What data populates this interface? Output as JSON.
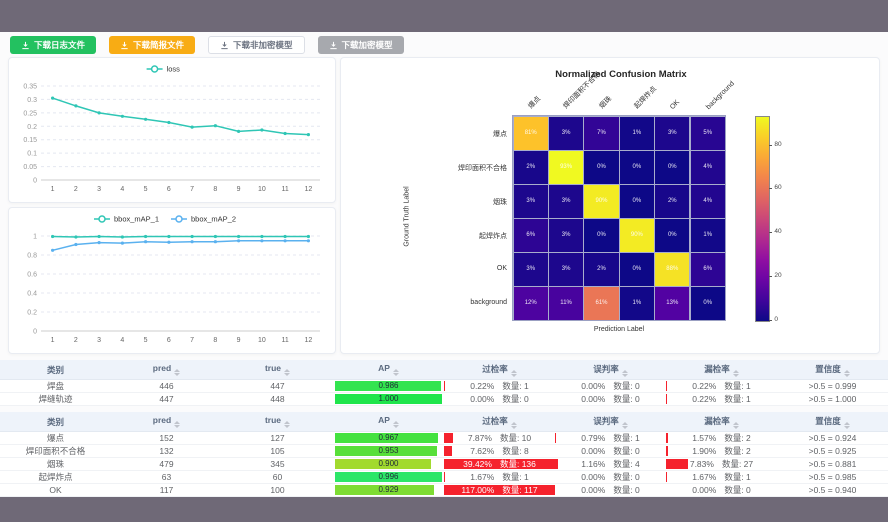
{
  "chrome": {
    "bar_color": "#6f6977"
  },
  "toolbar": {
    "buttons": [
      {
        "label": "下载日志文件",
        "variant": "success",
        "bg": "#23c160",
        "fg": "#ffffff"
      },
      {
        "label": "下载简报文件",
        "variant": "warning",
        "bg": "#f8ac14",
        "fg": "#ffffff"
      },
      {
        "label": "下载非加密模型",
        "variant": "plain",
        "bg": "#ffffff",
        "fg": "#6b7280"
      },
      {
        "label": "下载加密模型",
        "variant": "disabled",
        "bg": "#a7a9ae",
        "fg": "#ffffff"
      }
    ]
  },
  "chart_data": [
    {
      "id": "loss",
      "type": "line",
      "x": [
        1,
        2,
        3,
        4,
        5,
        6,
        7,
        8,
        9,
        10,
        11,
        12
      ],
      "series": [
        {
          "name": "loss",
          "color": "#2fc6b5",
          "values": [
            0.305,
            0.276,
            0.25,
            0.237,
            0.226,
            0.214,
            0.197,
            0.202,
            0.181,
            0.186,
            0.173,
            0.169
          ]
        }
      ],
      "ylim": [
        0,
        0.35
      ],
      "yticks": [
        0,
        0.05,
        0.1,
        0.15,
        0.2,
        0.25,
        0.3,
        0.35
      ],
      "legend_position": "top",
      "grid": "dashed"
    },
    {
      "id": "bbox_map",
      "type": "line",
      "x": [
        1,
        2,
        3,
        4,
        5,
        6,
        7,
        8,
        9,
        10,
        11,
        12
      ],
      "series": [
        {
          "name": "bbox_mAP_1",
          "color": "#2fc6b5",
          "values": [
            0.995,
            0.99,
            0.995,
            0.99,
            0.995,
            0.995,
            0.995,
            0.995,
            0.995,
            0.995,
            0.995,
            0.995
          ]
        },
        {
          "name": "bbox_mAP_2",
          "color": "#5ab1ef",
          "values": [
            0.85,
            0.91,
            0.93,
            0.925,
            0.94,
            0.935,
            0.94,
            0.94,
            0.95,
            0.95,
            0.95,
            0.95
          ]
        }
      ],
      "ylim": [
        0,
        1
      ],
      "yticks": [
        0,
        0.2,
        0.4,
        0.6,
        0.8,
        1
      ],
      "legend_position": "top",
      "grid": "dashed"
    },
    {
      "id": "confusion_matrix",
      "type": "heatmap",
      "title": "Normalized Confusion Matrix",
      "xlabel": "Prediction Label",
      "ylabel": "Ground Truth Label",
      "labels": [
        "爆点",
        "焊印面积不合格",
        "烟珠",
        "起焊炸点",
        "OK",
        "background"
      ],
      "values_percent": [
        [
          81,
          3,
          7,
          1,
          3,
          5
        ],
        [
          2,
          93,
          0,
          0,
          0,
          4
        ],
        [
          3,
          3,
          90,
          0,
          2,
          4
        ],
        [
          6,
          3,
          0,
          90,
          0,
          1
        ],
        [
          3,
          3,
          2,
          0,
          88,
          6
        ],
        [
          12,
          11,
          61,
          1,
          13,
          0
        ]
      ],
      "colormap": "plasma",
      "vmax": 93,
      "colorbar_ticks": [
        0,
        20,
        40,
        60,
        80
      ]
    }
  ],
  "tables": {
    "quantity_label": "数量:",
    "bar_red": "#f5222d",
    "headers": [
      {
        "label": "类别",
        "sortable": false
      },
      {
        "label": "pred",
        "sortable": true
      },
      {
        "label": "true",
        "sortable": true
      },
      {
        "label": "AP",
        "sortable": true
      },
      {
        "label": "过检率",
        "sortable": true
      },
      {
        "label": "误判率",
        "sortable": true
      },
      {
        "label": "漏检率",
        "sortable": true
      },
      {
        "label": "置信度",
        "sortable": true
      }
    ],
    "groups": [
      {
        "rows": [
          {
            "name": "焊盘",
            "pred": "446",
            "true": "447",
            "ap": "0.986",
            "ap_color": "#33e44f",
            "ap_pct": 98.6,
            "rates": [
              {
                "pct": "0.22%",
                "count": "1",
                "bar": 1
              },
              {
                "pct": "0.00%",
                "count": "0",
                "bar": 0
              },
              {
                "pct": "0.22%",
                "count": "1",
                "bar": 1
              }
            ],
            "conf": ">0.5 = 0.999"
          },
          {
            "name": "焊缝轨迹",
            "pred": "447",
            "true": "448",
            "ap": "1.000",
            "ap_color": "#1fe54b",
            "ap_pct": 100,
            "rates": [
              {
                "pct": "0.00%",
                "count": "0",
                "bar": 0
              },
              {
                "pct": "0.00%",
                "count": "0",
                "bar": 0
              },
              {
                "pct": "0.22%",
                "count": "1",
                "bar": 1
              }
            ],
            "conf": ">0.5 = 1.000"
          }
        ]
      },
      {
        "rows": [
          {
            "name": "爆点",
            "pred": "152",
            "true": "127",
            "ap": "0.967",
            "ap_color": "#44e23f",
            "ap_pct": 96.7,
            "rates": [
              {
                "pct": "7.87%",
                "count": "10",
                "bar": 8
              },
              {
                "pct": "0.79%",
                "count": "1",
                "bar": 1
              },
              {
                "pct": "1.57%",
                "count": "2",
                "bar": 2
              }
            ],
            "conf": ">0.5 = 0.924"
          },
          {
            "name": "焊印面积不合格",
            "pred": "132",
            "true": "105",
            "ap": "0.953",
            "ap_color": "#58df3a",
            "ap_pct": 95.3,
            "rates": [
              {
                "pct": "7.62%",
                "count": "8",
                "bar": 7
              },
              {
                "pct": "0.00%",
                "count": "0",
                "bar": 0
              },
              {
                "pct": "1.90%",
                "count": "2",
                "bar": 2
              }
            ],
            "conf": ">0.5 = 0.925"
          },
          {
            "name": "烟珠",
            "pred": "479",
            "true": "345",
            "ap": "0.900",
            "ap_color": "#a2da2e",
            "ap_pct": 90,
            "rates": [
              {
                "pct": "39.42%",
                "count": "136",
                "bar": 100
              },
              {
                "pct": "1.16%",
                "count": "4",
                "bar": 3
              },
              {
                "pct": "7.83%",
                "count": "27",
                "bar": 20
              }
            ],
            "conf": ">0.5 = 0.881"
          },
          {
            "name": "起焊炸点",
            "pred": "63",
            "true": "60",
            "ap": "0.996",
            "ap_color": "#2ce668",
            "ap_pct": 99.6,
            "rates": [
              {
                "pct": "1.67%",
                "count": "1",
                "bar": 1
              },
              {
                "pct": "0.00%",
                "count": "0",
                "bar": 0
              },
              {
                "pct": "1.67%",
                "count": "1",
                "bar": 1
              }
            ],
            "conf": ">0.5 = 0.985"
          },
          {
            "name": "OK",
            "pred": "117",
            "true": "100",
            "ap": "0.929",
            "ap_color": "#7edc33",
            "ap_pct": 92.9,
            "rates": [
              {
                "pct": "117.00%",
                "count": "117",
                "bar": 100
              },
              {
                "pct": "0.00%",
                "count": "0",
                "bar": 0
              },
              {
                "pct": "0.00%",
                "count": "0",
                "bar": 0
              }
            ],
            "conf": ">0.5 = 0.940"
          }
        ]
      }
    ]
  }
}
